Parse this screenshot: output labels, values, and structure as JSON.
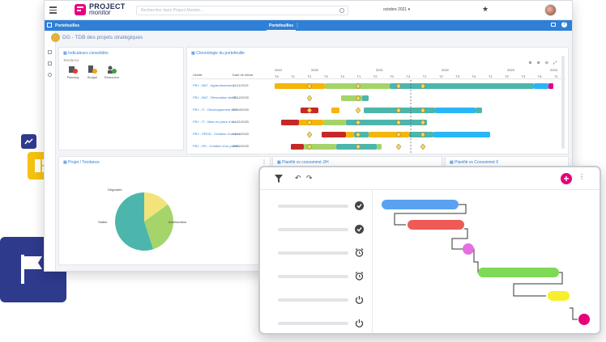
{
  "topbar": {
    "logo_line1": "PROJECT",
    "logo_line2": "monitor",
    "search_placeholder": "Rechercher dans Project Monitor...",
    "date_selector": "octobre 2021 ▾"
  },
  "bluebar": {
    "title": "Portefeuilles",
    "active_tab": "Portefeuilles"
  },
  "page_title": "DG - TDB des projets stratégiques",
  "indicators": {
    "title": "Indicateurs consolidés",
    "subtitle": "Tendance",
    "items": [
      "Planning",
      "Budget",
      "Ressource"
    ]
  },
  "timeline": {
    "title": "Chronologie du portefeuille",
    "col_label": "Libellé",
    "col_date": "Date de début",
    "years": [
      "2019",
      "2020",
      "2021",
      "2022",
      "2023",
      "2024"
    ],
    "quarters": [
      "T4",
      "T1",
      "T2",
      "T3",
      "T4",
      "T1",
      "T2",
      "T3",
      "T4",
      "T1",
      "T2",
      "T3",
      "T4",
      "T1",
      "T2",
      "T3",
      "T4",
      "T1"
    ],
    "rows": [
      {
        "label": "PRJ - BAT - Agrandissement ...",
        "date": "11/11/2019"
      },
      {
        "label": "PRJ - BAT - Rénovation site R...",
        "date": "02/12/2020"
      },
      {
        "label": "PRJ - IT - Développement de l...",
        "date": "25/04/2020"
      },
      {
        "label": "PRJ - IT - Mise en place d'un...",
        "date": "01/01/2020"
      },
      {
        "label": "PRJ - PROD - Création d'un no...",
        "date": "01/06/2020"
      },
      {
        "label": "PRJ - RH - Création d'un portail...",
        "date": "27/02/2020"
      }
    ]
  },
  "pie": {
    "title": "Projet / Tendance",
    "labels": [
      "Dégradée",
      "Stable",
      "Amélioration"
    ],
    "values": [
      15,
      30,
      55
    ]
  },
  "card3": {
    "title": "Planifié vs consommé J/H"
  },
  "card4": {
    "title": "Planifié vs Consommé €"
  },
  "gantt": {
    "status_icons": [
      "check-icon",
      "check-icon",
      "alarm-icon",
      "alarm-icon",
      "power-icon",
      "power-icon"
    ],
    "colors": {
      "blue": "#5aa2ef",
      "red": "#ee5a56",
      "purple": "#e56fe0",
      "green": "#7ed957",
      "yellow": "#f7ef2c",
      "pink": "#e6007e"
    }
  }
}
